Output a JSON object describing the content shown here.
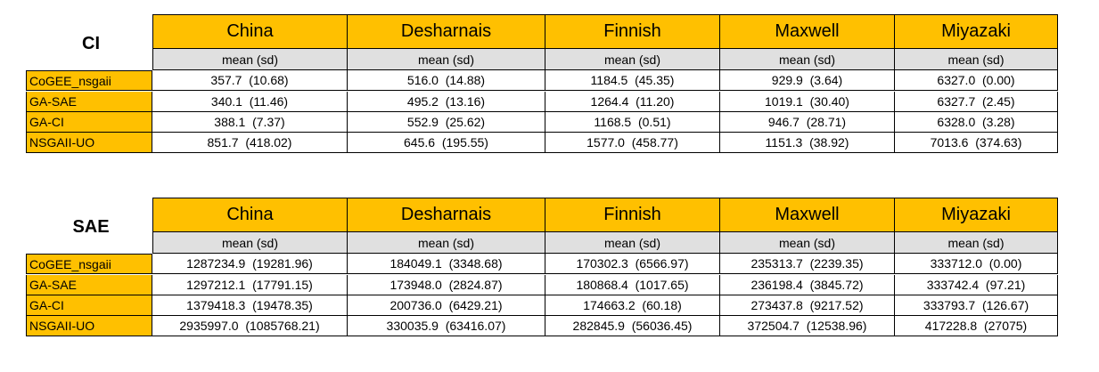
{
  "columns": [
    "China",
    "Desharnais",
    "Finnish",
    "Maxwell",
    "Miyazaki"
  ],
  "subheader": "mean  (sd)",
  "tables": [
    {
      "title": "CI",
      "rows": [
        {
          "label": "CoGEE_nsgaii",
          "cells": [
            "357.7  (10.68)",
            "516.0  (14.88)",
            "1184.5  (45.35)",
            "929.9  (3.64)",
            "6327.0  (0.00)"
          ]
        },
        {
          "label": "GA-SAE",
          "cells": [
            "340.1  (11.46)",
            "495.2  (13.16)",
            "1264.4  (11.20)",
            "1019.1  (30.40)",
            "6327.7  (2.45)"
          ]
        },
        {
          "label": "GA-CI",
          "cells": [
            "388.1  (7.37)",
            "552.9  (25.62)",
            "1168.5  (0.51)",
            "946.7  (28.71)",
            "6328.0  (3.28)"
          ]
        },
        {
          "label": "NSGAII-UO",
          "cells": [
            "851.7  (418.02)",
            "645.6  (195.55)",
            "1577.0  (458.77)",
            "1151.3  (38.92)",
            "7013.6  (374.63)"
          ]
        }
      ]
    },
    {
      "title": "SAE",
      "rows": [
        {
          "label": "CoGEE_nsgaii",
          "cells": [
            "1287234.9  (19281.96)",
            "184049.1  (3348.68)",
            "170302.3  (6566.97)",
            "235313.7  (2239.35)",
            "333712.0  (0.00)"
          ]
        },
        {
          "label": "GA-SAE",
          "cells": [
            "1297212.1  (17791.15)",
            "173948.0  (2824.87)",
            "180868.4  (1017.65)",
            "236198.4  (3845.72)",
            "333742.4  (97.21)"
          ]
        },
        {
          "label": "GA-CI",
          "cells": [
            "1379418.3  (19478.35)",
            "200736.0  (6429.21)",
            "174663.2  (60.18)",
            "273437.8  (9217.52)",
            "333793.7  (126.67)"
          ]
        },
        {
          "label": "NSGAII-UO",
          "cells": [
            "2935997.0  (1085768.21)",
            "330035.9  (63416.07)",
            "282845.9  (56036.45)",
            "372504.7  (12538.96)",
            "417228.8  (27075)"
          ]
        }
      ]
    }
  ],
  "colors": {
    "header": "#ffc000",
    "subheader": "#e0e0e0"
  }
}
